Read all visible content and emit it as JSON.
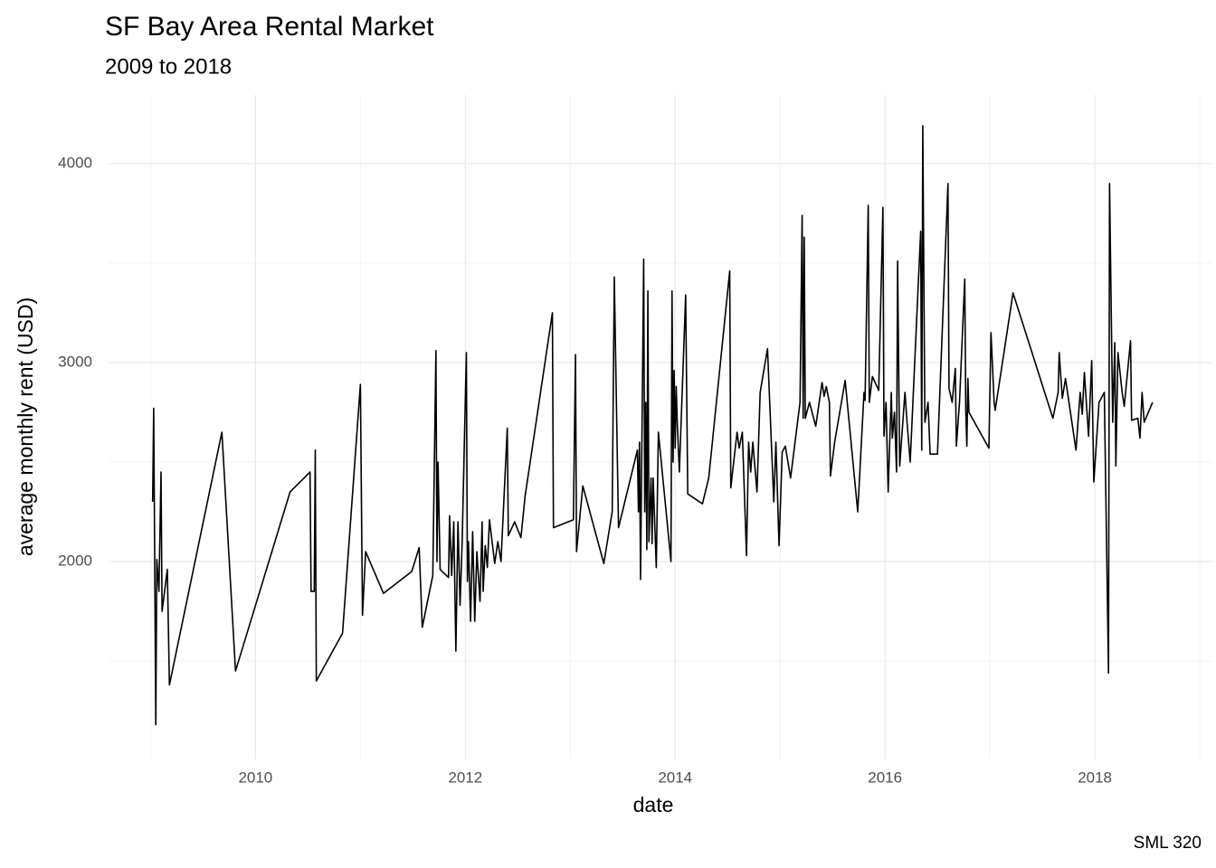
{
  "chart_data": {
    "type": "line",
    "title": "SF Bay Area Rental Market",
    "subtitle": "2009 to 2018",
    "x_label": "date",
    "y_label": "average monthly rent (USD)",
    "caption": "SML 320",
    "color": "#000000",
    "grid": true,
    "xlim": [
      2008.6,
      2019.12
    ],
    "xticks": [
      2010,
      2012,
      2014,
      2016,
      2018
    ],
    "ylim": [
      1005,
      4345
    ],
    "yticks": [
      2000,
      3000,
      4000
    ],
    "x": [
      2009.02,
      2009.03,
      2009.05,
      2009.06,
      2009.08,
      2009.1,
      2009.11,
      2009.16,
      2009.18,
      2009.68,
      2009.81,
      2010.33,
      2010.52,
      2010.53,
      2010.56,
      2010.57,
      2010.58,
      2010.83,
      2011.0,
      2011.02,
      2011.05,
      2011.22,
      2011.49,
      2011.56,
      2011.59,
      2011.69,
      2011.72,
      2011.73,
      2011.74,
      2011.76,
      2011.84,
      2011.85,
      2011.87,
      2011.89,
      2011.91,
      2011.93,
      2011.95,
      2011.97,
      2012.01,
      2012.02,
      2012.03,
      2012.05,
      2012.07,
      2012.09,
      2012.11,
      2012.14,
      2012.16,
      2012.17,
      2012.19,
      2012.21,
      2012.23,
      2012.28,
      2012.31,
      2012.34,
      2012.4,
      2012.41,
      2012.47,
      2012.53,
      2012.57,
      2012.83,
      2012.84,
      2013.03,
      2013.05,
      2013.06,
      2013.12,
      2013.32,
      2013.4,
      2013.42,
      2013.46,
      2013.64,
      2013.65,
      2013.66,
      2013.67,
      2013.7,
      2013.71,
      2013.72,
      2013.73,
      2013.74,
      2013.75,
      2013.77,
      2013.78,
      2013.79,
      2013.82,
      2013.84,
      2013.96,
      2013.97,
      2013.98,
      2013.99,
      2014.0,
      2014.01,
      2014.02,
      2014.04,
      2014.1,
      2014.12,
      2014.26,
      2014.32,
      2014.52,
      2014.53,
      2014.59,
      2014.61,
      2014.64,
      2014.68,
      2014.7,
      2014.72,
      2014.74,
      2014.78,
      2014.81,
      2014.88,
      2014.94,
      2014.96,
      2014.99,
      2015.02,
      2015.05,
      2015.1,
      2015.19,
      2015.21,
      2015.22,
      2015.23,
      2015.24,
      2015.28,
      2015.34,
      2015.4,
      2015.42,
      2015.44,
      2015.47,
      2015.48,
      2015.52,
      2015.62,
      2015.74,
      2015.8,
      2015.81,
      2015.84,
      2015.85,
      2015.88,
      2015.94,
      2015.98,
      2015.99,
      2016.01,
      2016.03,
      2016.06,
      2016.07,
      2016.09,
      2016.11,
      2016.12,
      2016.14,
      2016.19,
      2016.21,
      2016.24,
      2016.27,
      2016.34,
      2016.35,
      2016.36,
      2016.38,
      2016.41,
      2016.43,
      2016.5,
      2016.6,
      2016.61,
      2016.64,
      2016.67,
      2016.68,
      2016.71,
      2016.76,
      2016.77,
      2016.78,
      2016.79,
      2016.8,
      2016.99,
      2017.01,
      2017.04,
      2017.05,
      2017.22,
      2017.6,
      2017.65,
      2017.66,
      2017.69,
      2017.72,
      2017.82,
      2017.86,
      2017.88,
      2017.9,
      2017.94,
      2017.97,
      2017.99,
      2018.04,
      2018.09,
      2018.13,
      2018.14,
      2018.17,
      2018.19,
      2018.2,
      2018.22,
      2018.26,
      2018.28,
      2018.34,
      2018.35,
      2018.41,
      2018.43,
      2018.45,
      2018.47,
      2018.55
    ],
    "values": [
      2300,
      2770,
      1180,
      2010,
      1850,
      2450,
      1750,
      1960,
      1380,
      2650,
      1450,
      2350,
      2450,
      1850,
      1850,
      2560,
      1400,
      1640,
      2890,
      1730,
      2050,
      1840,
      1950,
      2070,
      1670,
      1930,
      3060,
      2000,
      2500,
      1960,
      1920,
      2230,
      1930,
      2200,
      1550,
      2200,
      1780,
      2100,
      3050,
      1900,
      2100,
      1700,
      2150,
      1700,
      2050,
      1800,
      2200,
      1850,
      2080,
      1970,
      2210,
      1990,
      2100,
      2000,
      2670,
      2130,
      2200,
      2120,
      2330,
      3250,
      2170,
      2210,
      3040,
      2050,
      2380,
      1990,
      2250,
      3430,
      2170,
      2560,
      2250,
      2600,
      1910,
      3520,
      2250,
      2800,
      2060,
      3360,
      2100,
      2420,
      2090,
      2420,
      1970,
      2650,
      2000,
      3360,
      2500,
      2960,
      2570,
      2880,
      2700,
      2450,
      3340,
      2340,
      2290,
      2420,
      3460,
      2370,
      2650,
      2570,
      2650,
      2030,
      2600,
      2450,
      2600,
      2350,
      2850,
      3070,
      2300,
      2600,
      2080,
      2550,
      2580,
      2420,
      2800,
      3740,
      2720,
      3630,
      2720,
      2800,
      2680,
      2900,
      2830,
      2880,
      2800,
      2430,
      2600,
      2910,
      2250,
      2850,
      2810,
      3790,
      2800,
      2930,
      2860,
      3780,
      2630,
      2800,
      2350,
      2850,
      2620,
      2750,
      2450,
      3510,
      2480,
      2850,
      2700,
      2500,
      2850,
      3660,
      2560,
      4190,
      2700,
      2800,
      2540,
      2540,
      3900,
      2870,
      2800,
      2970,
      2580,
      2800,
      3420,
      2750,
      2580,
      2920,
      2750,
      2570,
      3150,
      2800,
      2760,
      3350,
      2720,
      2850,
      3050,
      2820,
      2920,
      2560,
      2850,
      2740,
      2950,
      2630,
      3010,
      2400,
      2800,
      2850,
      1440,
      3900,
      2700,
      3100,
      2480,
      3050,
      2850,
      2780,
      3110,
      2710,
      2720,
      2620,
      2850,
      2700,
      2800
    ]
  }
}
